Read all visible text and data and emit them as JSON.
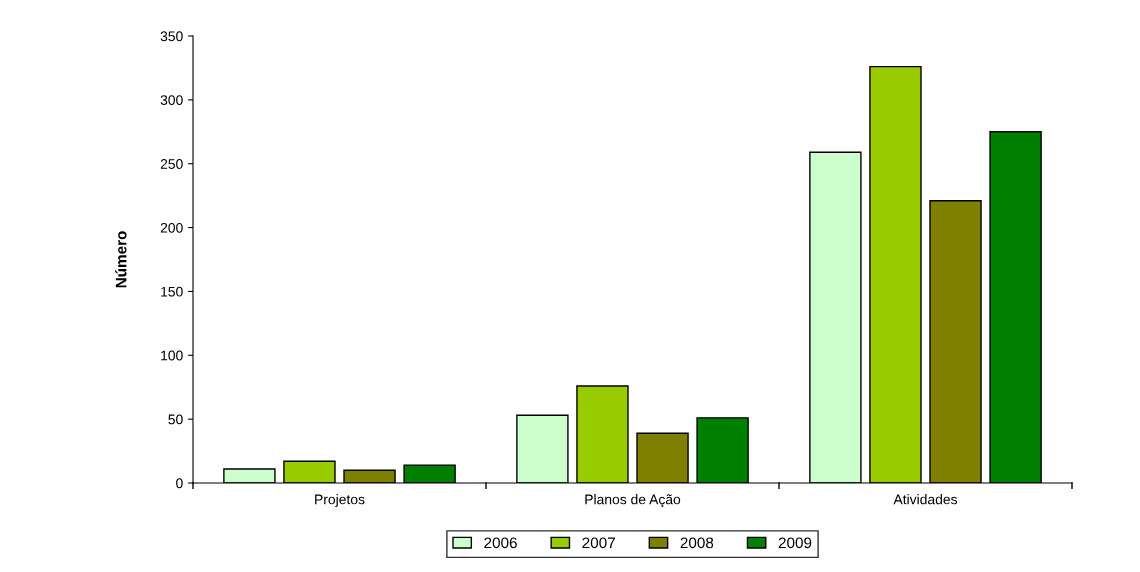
{
  "chart_data": {
    "type": "bar",
    "ylabel": "Número",
    "categories": [
      "Projetos",
      "Planos de Ação",
      "Atividades"
    ],
    "series": [
      {
        "name": "2006",
        "color": "#ccffcc",
        "values": [
          11,
          53,
          259
        ]
      },
      {
        "name": "2007",
        "color": "#99cc00",
        "values": [
          17,
          76,
          326
        ]
      },
      {
        "name": "2008",
        "color": "#808000",
        "values": [
          10,
          39,
          221
        ]
      },
      {
        "name": "2009",
        "color": "#008000",
        "values": [
          14,
          51,
          275
        ]
      }
    ],
    "ylim": [
      0,
      350
    ],
    "yticks": [
      0,
      50,
      100,
      150,
      200,
      250,
      300,
      350
    ],
    "grid": false,
    "legend": "bottom"
  }
}
